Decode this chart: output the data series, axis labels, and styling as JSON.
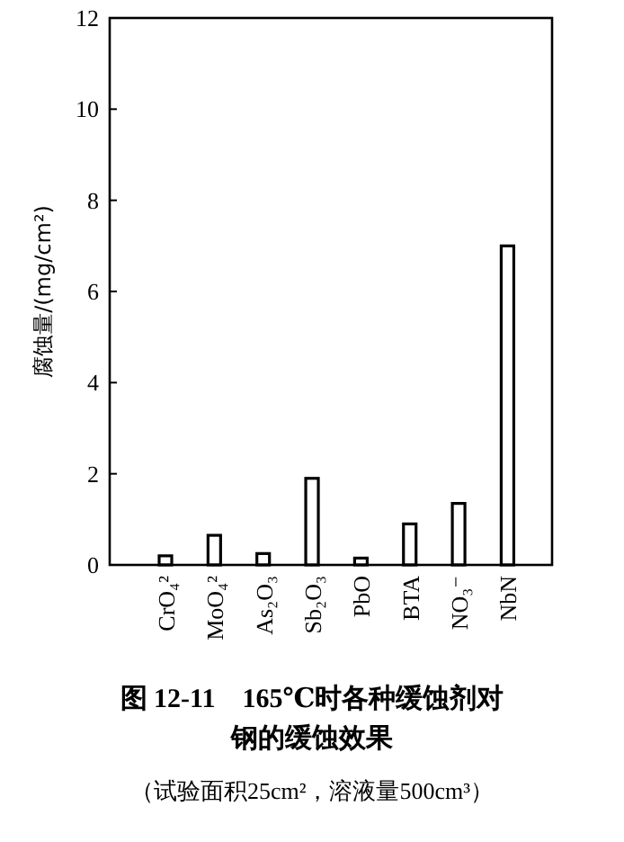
{
  "chart_data": {
    "type": "bar",
    "title": "图 12-11　165℃时各种缓蚀剂对钢的缓蚀效果",
    "subtitle": "（试验面积25cm²，溶液量500cm³）",
    "ylabel": "腐蚀量/(mg/cm²)",
    "categories": [
      "CrO₄²",
      "MoO₄²",
      "As₂O₃",
      "Sb₂O₃",
      "PbO",
      "BTA",
      "NO₃⁻",
      "NbN"
    ],
    "values": [
      0.2,
      0.65,
      0.25,
      1.9,
      0.15,
      0.9,
      1.35,
      7.0
    ],
    "color": "#ffffff",
    "ylim": [
      0,
      12
    ],
    "yticks": [
      0,
      2,
      4,
      6,
      8,
      10,
      12
    ]
  }
}
